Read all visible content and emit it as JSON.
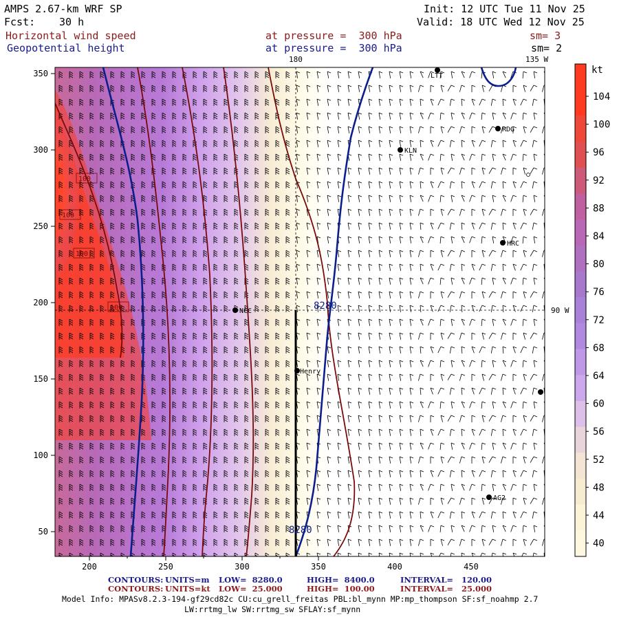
{
  "header": {
    "model": "AMPS 2.67-km WRF SP",
    "fcst_label": "Fcst:",
    "fcst_value": "30 h",
    "init": "Init: 12 UTC Tue 11 Nov 25",
    "valid": "Valid: 18 UTC Wed 12 Nov 25",
    "field1": {
      "name": "Horizontal wind speed",
      "level": "at pressure =  300 hPa",
      "smooth": "sm= 3"
    },
    "field2": {
      "name": "Geopotential height",
      "level": "at pressure =  300 hPa",
      "smooth": "sm= 2"
    }
  },
  "map": {
    "meridian_top_label": "180",
    "meridian_topright_label": "135 W",
    "meridian_right_label": "90 W",
    "x_ticks": [
      "200",
      "250",
      "300",
      "350",
      "400",
      "450"
    ],
    "y_ticks": [
      "50",
      "100",
      "150",
      "200",
      "250",
      "300",
      "350"
    ],
    "stations": [
      {
        "name": "KLN"
      },
      {
        "name": "RDG"
      },
      {
        "name": "HRC"
      },
      {
        "name": "NCC"
      },
      {
        "name": "Henry"
      },
      {
        "name": "AG2"
      },
      {
        "name": "LTT"
      }
    ],
    "height_contour_labels": [
      "8280",
      "8280"
    ],
    "speed_contour_labels": [
      "100",
      "100",
      "100",
      "100"
    ],
    "colors": {
      "height_contour": "#0a1e8c",
      "speed_contour": "#7a0a0a",
      "fill_max": "#ff3a20",
      "fill_mid": "#b070c8",
      "fill_low": "#fff8d8"
    }
  },
  "colorbar": {
    "unit": "kt",
    "labels": [
      "104",
      "100",
      "96",
      "92",
      "88",
      "84",
      "80",
      "76",
      "72",
      "68",
      "64",
      "60",
      "56",
      "52",
      "48",
      "44",
      "40"
    ],
    "colors": [
      "#ff3a20",
      "#ff3a20",
      "#f04838",
      "#e05050",
      "#cc5a78",
      "#c060a0",
      "#b868b4",
      "#b070c0",
      "#a878cc",
      "#a882d8",
      "#b08ae0",
      "#c098e8",
      "#cca8ec",
      "#dcc0e8",
      "#ead4dc",
      "#f4e4d4",
      "#f8ecd0",
      "#fcf4d8",
      "#fff8e0"
    ]
  },
  "footer": {
    "contours1": {
      "label": "CONTOURS:",
      "units": "UNITS=m",
      "low": "LOW=  8280.0",
      "high": "HIGH=  8400.0",
      "interval": "INTERVAL=   120.00"
    },
    "contours2": {
      "label": "CONTOURS:",
      "units": "UNITS=kt",
      "low": "LOW=  25.000",
      "high": "HIGH=  100.00",
      "interval": "INTERVAL=   25.000"
    },
    "model_info": "Model Info: MPASv8.2.3-194-gf29cd82c CU:cu_grell_freitas PBL:bl_mynn MP:mp_thompson SF:sf_noahmp 2.7",
    "model_info2": "LW:rrtmg_lw SW:rrtmg_sw SFLAY:sf_mynn"
  }
}
